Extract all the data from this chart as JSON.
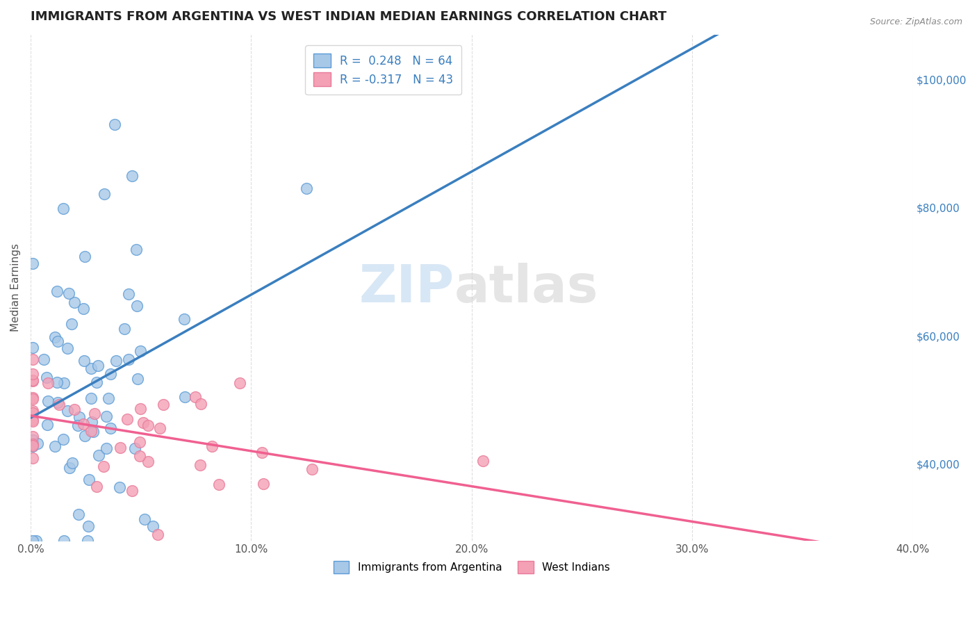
{
  "title": "IMMIGRANTS FROM ARGENTINA VS WEST INDIAN MEDIAN EARNINGS CORRELATION CHART",
  "source": "Source: ZipAtlas.com",
  "ylabel": "Median Earnings",
  "xlim": [
    0.0,
    0.4
  ],
  "ylim": [
    28000,
    107000
  ],
  "xtick_labels": [
    "0.0%",
    "10.0%",
    "20.0%",
    "30.0%",
    "40.0%"
  ],
  "xtick_vals": [
    0.0,
    0.1,
    0.2,
    0.3,
    0.4
  ],
  "ytick_labels": [
    "$40,000",
    "$60,000",
    "$80,000",
    "$100,000"
  ],
  "ytick_vals": [
    40000,
    60000,
    80000,
    100000
  ],
  "watermark_zip": "ZIP",
  "watermark_atlas": "atlas",
  "argentina_color": "#a8c8e8",
  "argentina_edge": "#5b9bd5",
  "westindian_color": "#f4a0b5",
  "westindian_edge": "#e87a99",
  "argentina_R": 0.248,
  "argentina_N": 64,
  "westindian_R": -0.317,
  "westindian_N": 43,
  "argentina_line_color": "#3a7fbf",
  "westindian_line_color": "#f06090",
  "argentina_dash_color": "#c0d8ee",
  "background_color": "#ffffff",
  "grid_color": "#dddddd",
  "title_fontsize": 13,
  "axis_label_fontsize": 11,
  "tick_fontsize": 11,
  "legend_fontsize": 12,
  "source_fontsize": 9
}
